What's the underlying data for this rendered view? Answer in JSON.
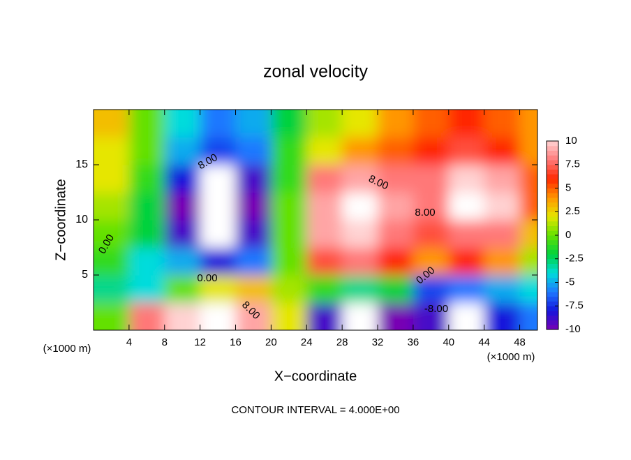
{
  "chart_data": {
    "type": "contour",
    "title": "zonal velocity",
    "xlabel": "X−coordinate",
    "ylabel": "Z−coordinate",
    "x_unit": "(×1000 m)",
    "y_unit": "(×1000 m)",
    "footnote": "CONTOUR INTERVAL = 4.000E+00",
    "xlim": [
      0,
      50
    ],
    "xticks": [
      4,
      8,
      12,
      16,
      20,
      24,
      28,
      32,
      36,
      40,
      44,
      48
    ],
    "ylim": [
      0,
      20
    ],
    "yticks": [
      5,
      10,
      15
    ],
    "x": [
      2,
      6,
      10,
      14,
      18,
      22,
      26,
      30,
      34,
      38,
      42,
      46,
      50
    ],
    "y": [
      1.25,
      3.75,
      6.25,
      8.75,
      11.25,
      13.75,
      16.25,
      18.75
    ],
    "z": [
      [
        0,
        8,
        10,
        11,
        9,
        2,
        -9,
        -11,
        -10,
        -9,
        -11,
        -8,
        -6
      ],
      [
        -3,
        -4,
        0,
        2,
        3,
        1,
        -1,
        -3,
        -2,
        -7,
        -6,
        -5,
        -4
      ],
      [
        -1,
        -4,
        -5,
        -8,
        -6,
        0,
        7,
        8,
        6,
        4,
        6,
        4,
        1
      ],
      [
        0,
        -2,
        -9,
        -11,
        -9,
        0,
        9,
        10,
        8,
        7,
        8,
        8,
        3
      ],
      [
        1,
        -2,
        -10,
        -12,
        -10,
        0,
        9,
        12,
        9,
        8,
        11,
        10,
        5
      ],
      [
        2,
        -1,
        -8,
        -11,
        -9,
        -1,
        8,
        9,
        8,
        8,
        10,
        9,
        5
      ],
      [
        2,
        0,
        -5,
        -7,
        -6,
        -1,
        2,
        4,
        5,
        6,
        7,
        6,
        4
      ],
      [
        3,
        0,
        -4,
        -6,
        -5,
        -2,
        1,
        2,
        4,
        5,
        6,
        5,
        4
      ]
    ],
    "clim": [
      -10,
      10
    ],
    "colorbar_ticks": [
      10,
      7.5,
      5,
      2.5,
      0,
      -2.5,
      -5,
      -7.5,
      -10
    ],
    "colors": [
      "#7800b4",
      "#1414dc",
      "#1e78ff",
      "#00dcdc",
      "#00d23c",
      "#64e100",
      "#e6e600",
      "#ff9600",
      "#ff2800",
      "#ff7878",
      "#ffd2d2"
    ],
    "extend_color": "#ffffff",
    "annotations": [
      "8.00",
      "8.00",
      "8.00",
      "0.00",
      "0.00",
      "0.00",
      "8.00",
      "-8.00"
    ]
  }
}
